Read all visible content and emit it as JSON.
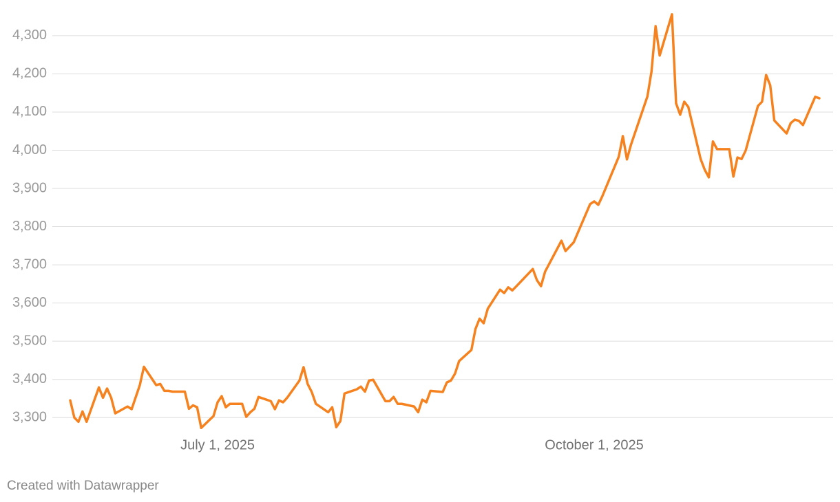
{
  "chart_data": {
    "type": "line",
    "x": [
      "2025-05-26",
      "2025-05-27",
      "2025-05-28",
      "2025-05-29",
      "2025-05-30",
      "2025-06-02",
      "2025-06-03",
      "2025-06-04",
      "2025-06-05",
      "2025-06-06",
      "2025-06-09",
      "2025-06-10",
      "2025-06-12",
      "2025-06-13",
      "2025-06-16",
      "2025-06-17",
      "2025-06-18",
      "2025-06-19",
      "2025-06-20",
      "2025-06-23",
      "2025-06-24",
      "2025-06-25",
      "2025-06-26",
      "2025-06-27",
      "2025-06-30",
      "2025-07-01",
      "2025-07-02",
      "2025-07-03",
      "2025-07-04",
      "2025-07-07",
      "2025-07-08",
      "2025-07-09",
      "2025-07-10",
      "2025-07-11",
      "2025-07-14",
      "2025-07-15",
      "2025-07-16",
      "2025-07-17",
      "2025-07-18",
      "2025-07-21",
      "2025-07-22",
      "2025-07-23",
      "2025-07-24",
      "2025-07-25",
      "2025-07-28",
      "2025-07-29",
      "2025-07-30",
      "2025-07-31",
      "2025-08-01",
      "2025-08-04",
      "2025-08-05",
      "2025-08-06",
      "2025-08-07",
      "2025-08-08",
      "2025-08-11",
      "2025-08-12",
      "2025-08-13",
      "2025-08-14",
      "2025-08-15",
      "2025-08-18",
      "2025-08-19",
      "2025-08-20",
      "2025-08-21",
      "2025-08-22",
      "2025-08-25",
      "2025-08-26",
      "2025-08-27",
      "2025-08-28",
      "2025-08-29",
      "2025-09-01",
      "2025-09-02",
      "2025-09-03",
      "2025-09-04",
      "2025-09-05",
      "2025-09-08",
      "2025-09-09",
      "2025-09-10",
      "2025-09-11",
      "2025-09-12",
      "2025-09-16",
      "2025-09-17",
      "2025-09-18",
      "2025-09-19",
      "2025-09-23",
      "2025-09-24",
      "2025-09-26",
      "2025-09-30",
      "2025-10-01",
      "2025-10-02",
      "2025-10-03",
      "2025-10-07",
      "2025-10-08",
      "2025-10-09",
      "2025-10-10",
      "2025-10-14",
      "2025-10-15",
      "2025-10-16",
      "2025-10-17",
      "2025-10-20",
      "2025-10-21",
      "2025-10-22",
      "2025-10-23",
      "2025-10-24",
      "2025-10-27",
      "2025-10-28",
      "2025-10-29",
      "2025-10-30",
      "2025-10-31",
      "2025-11-03",
      "2025-11-04",
      "2025-11-05",
      "2025-11-06",
      "2025-11-07",
      "2025-11-10",
      "2025-11-11",
      "2025-11-12",
      "2025-11-13",
      "2025-11-14",
      "2025-11-17",
      "2025-11-18",
      "2025-11-19",
      "2025-11-20",
      "2025-11-21",
      "2025-11-24",
      "2025-11-25"
    ],
    "values": [
      3345,
      3300,
      3289,
      3316,
      3289,
      3379,
      3352,
      3376,
      3352,
      3311,
      3329,
      3322,
      3385,
      3433,
      3385,
      3388,
      3370,
      3370,
      3368,
      3368,
      3323,
      3332,
      3327,
      3273,
      3304,
      3340,
      3356,
      3327,
      3336,
      3336,
      3302,
      3314,
      3323,
      3354,
      3343,
      3322,
      3345,
      3340,
      3352,
      3397,
      3432,
      3388,
      3367,
      3336,
      3314,
      3327,
      3275,
      3291,
      3363,
      3374,
      3381,
      3368,
      3397,
      3399,
      3343,
      3343,
      3354,
      3336,
      3336,
      3329,
      3314,
      3347,
      3340,
      3370,
      3367,
      3392,
      3397,
      3415,
      3448,
      3477,
      3532,
      3559,
      3547,
      3585,
      3635,
      3626,
      3641,
      3633,
      3644,
      3689,
      3660,
      3644,
      3682,
      3763,
      3736,
      3759,
      3859,
      3866,
      3857,
      3880,
      3983,
      4037,
      3976,
      4015,
      4141,
      4206,
      4325,
      4248,
      4356,
      4123,
      4093,
      4127,
      4113,
      3977,
      3949,
      3929,
      4023,
      4003,
      4003,
      3931,
      3981,
      3977,
      3999,
      4116,
      4127,
      4197,
      4170,
      4078,
      4044,
      4071,
      4080,
      4077,
      4066,
      4140,
      4136
    ],
    "color": "#f5821f",
    "xlim": [
      "2025-05-26",
      "2025-11-25"
    ],
    "xticks": [
      {
        "value": "2025-07-01",
        "label": "July 1, 2025"
      },
      {
        "value": "2025-10-01",
        "label": "October 1, 2025"
      }
    ],
    "ylim": [
      3250,
      4370
    ],
    "yticks": [
      {
        "value": 3300,
        "label": "3,300"
      },
      {
        "value": 3400,
        "label": "3,400"
      },
      {
        "value": 3500,
        "label": "3,500"
      },
      {
        "value": 3600,
        "label": "3,600"
      },
      {
        "value": 3700,
        "label": "3,700"
      },
      {
        "value": 3800,
        "label": "3,800"
      },
      {
        "value": 3900,
        "label": "3,900"
      },
      {
        "value": 4000,
        "label": "4,000"
      },
      {
        "value": 4100,
        "label": "4,100"
      },
      {
        "value": 4200,
        "label": "4,200"
      },
      {
        "value": 4300,
        "label": "4,300"
      }
    ],
    "grid": true,
    "credit": "Created with Datawrapper"
  }
}
